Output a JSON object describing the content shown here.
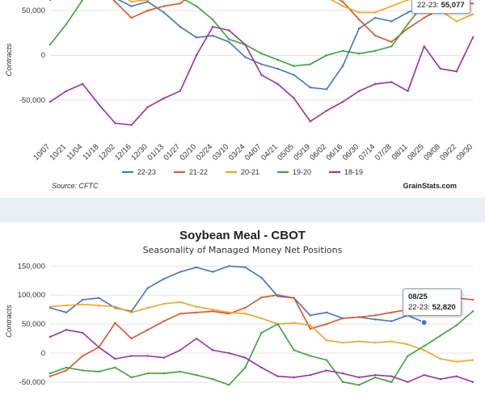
{
  "colors": {
    "22-23": "#4472c4",
    "21-22": "#e0522a",
    "20-21": "#f2a41e",
    "19-20": "#3aa33a",
    "18-19": "#9a2fa3"
  },
  "top": {
    "ylabel": "Contracts",
    "ticks_y": [
      "50,000",
      "0",
      "-50,000"
    ],
    "legend": [
      "22-23",
      "21-22",
      "20-21",
      "19-20",
      "18-19"
    ],
    "source": "Source: CFTC",
    "brand": "GrainStats.com",
    "tooltip": {
      "series": "22-23:",
      "value": "55,077"
    }
  },
  "bottom": {
    "title": "Soybean Meal - CBOT",
    "subtitle": "Seasonality of Managed Money Net Positions",
    "ylabel": "Contracts",
    "ticks_y": [
      "150,000",
      "100,000",
      "50,000",
      "0",
      "-50,000"
    ],
    "tooltip": {
      "date": "08/25",
      "series": "22-23:",
      "value": "52,820"
    }
  },
  "chart_data": [
    {
      "type": "line",
      "title": "",
      "ylabel": "Contracts",
      "ylim": [
        -90000,
        80000
      ],
      "categories": [
        "10/07",
        "10/21",
        "11/04",
        "11/18",
        "12/02",
        "12/16",
        "12/30",
        "01/13",
        "01/27",
        "02/10",
        "02/24",
        "03/10",
        "03/24",
        "04/07",
        "04/21",
        "05/05",
        "05/19",
        "06/02",
        "06/16",
        "06/30",
        "07/14",
        "07/28",
        "08/11",
        "08/25",
        "09/08",
        "09/22",
        "09/30"
      ],
      "series": [
        {
          "name": "22-23",
          "values": [
            62000,
            72000,
            75000,
            72000,
            64000,
            55000,
            60000,
            48000,
            32000,
            20000,
            22000,
            15000,
            -2000,
            -10000,
            -15000,
            -22000,
            -36000,
            -38000,
            -12000,
            30000,
            42000,
            38000,
            48000,
            55077,
            null,
            null,
            null
          ]
        },
        {
          "name": "21-22",
          "values": [
            80000,
            77000,
            74000,
            78000,
            60000,
            42000,
            50000,
            55000,
            58000,
            72000,
            78000,
            75000,
            82000,
            80000,
            78000,
            85000,
            82000,
            70000,
            60000,
            40000,
            22000,
            15000,
            30000,
            42000,
            52000,
            58000,
            58000
          ]
        },
        {
          "name": "20-21",
          "values": [
            75000,
            78000,
            80000,
            80000,
            72000,
            60000,
            62000,
            65000,
            70000,
            76000,
            80000,
            78000,
            85000,
            78000,
            75000,
            82000,
            80000,
            65000,
            55000,
            48000,
            48000,
            55000,
            62000,
            68000,
            50000,
            38000,
            46000
          ]
        },
        {
          "name": "19-20",
          "values": [
            12000,
            35000,
            62000,
            72000,
            76000,
            66000,
            72000,
            70000,
            65000,
            55000,
            40000,
            18000,
            12000,
            2000,
            -5000,
            -12000,
            -10000,
            0,
            5000,
            2000,
            5000,
            10000,
            35000,
            58000,
            60000,
            70000,
            72000
          ]
        },
        {
          "name": "18-19",
          "values": [
            -52000,
            -40000,
            -32000,
            -55000,
            -76000,
            -78000,
            -58000,
            -48000,
            -40000,
            0,
            32000,
            28000,
            12000,
            -22000,
            -32000,
            -48000,
            -74000,
            -62000,
            -52000,
            -40000,
            -32000,
            -30000,
            -40000,
            10000,
            -15000,
            -18000,
            20000
          ]
        }
      ]
    },
    {
      "type": "line",
      "title": "Soybean Meal - CBOT",
      "subtitle": "Seasonality of Managed Money Net Positions",
      "ylabel": "Contracts",
      "ylim": [
        -60000,
        170000
      ],
      "categories": [
        "10/07",
        "10/21",
        "11/04",
        "11/18",
        "12/02",
        "12/16",
        "12/30",
        "01/13",
        "01/27",
        "02/10",
        "02/24",
        "03/10",
        "03/24",
        "04/07",
        "04/21",
        "05/05",
        "05/19",
        "06/02",
        "06/16",
        "06/30",
        "07/14",
        "07/28",
        "08/11",
        "08/25",
        "09/08",
        "09/22",
        "09/30"
      ],
      "series": [
        {
          "name": "22-23",
          "values": [
            78000,
            70000,
            92000,
            95000,
            78000,
            72000,
            112000,
            128000,
            140000,
            148000,
            140000,
            150000,
            148000,
            130000,
            98000,
            95000,
            65000,
            70000,
            60000,
            62000,
            58000,
            55000,
            65000,
            52820,
            null,
            null,
            null
          ]
        },
        {
          "name": "21-22",
          "values": [
            -40000,
            -30000,
            -5000,
            10000,
            52000,
            25000,
            40000,
            55000,
            68000,
            70000,
            72000,
            68000,
            78000,
            96000,
            100000,
            95000,
            42000,
            50000,
            60000,
            62000,
            65000,
            70000,
            75000,
            85000,
            90000,
            95000,
            92000
          ]
        },
        {
          "name": "20-21",
          "values": [
            80000,
            82000,
            84000,
            82000,
            80000,
            70000,
            78000,
            85000,
            88000,
            80000,
            75000,
            70000,
            68000,
            60000,
            50000,
            52000,
            48000,
            22000,
            18000,
            20000,
            18000,
            20000,
            15000,
            5000,
            -10000,
            -15000,
            -12000
          ]
        },
        {
          "name": "19-20",
          "values": [
            -35000,
            -25000,
            -30000,
            -32000,
            -25000,
            -42000,
            -35000,
            -35000,
            -32000,
            -38000,
            -45000,
            -55000,
            -25000,
            35000,
            50000,
            5000,
            -5000,
            -12000,
            -50000,
            -55000,
            -42000,
            -50000,
            -5000,
            12000,
            30000,
            48000,
            72000
          ]
        },
        {
          "name": "18-19",
          "values": [
            28000,
            40000,
            35000,
            10000,
            -10000,
            -5000,
            -5000,
            -8000,
            5000,
            25000,
            5000,
            0,
            -8000,
            -25000,
            -40000,
            -42000,
            -38000,
            -30000,
            -35000,
            -42000,
            -38000,
            -40000,
            -50000,
            -38000,
            -45000,
            -40000,
            -50000
          ]
        }
      ]
    }
  ]
}
